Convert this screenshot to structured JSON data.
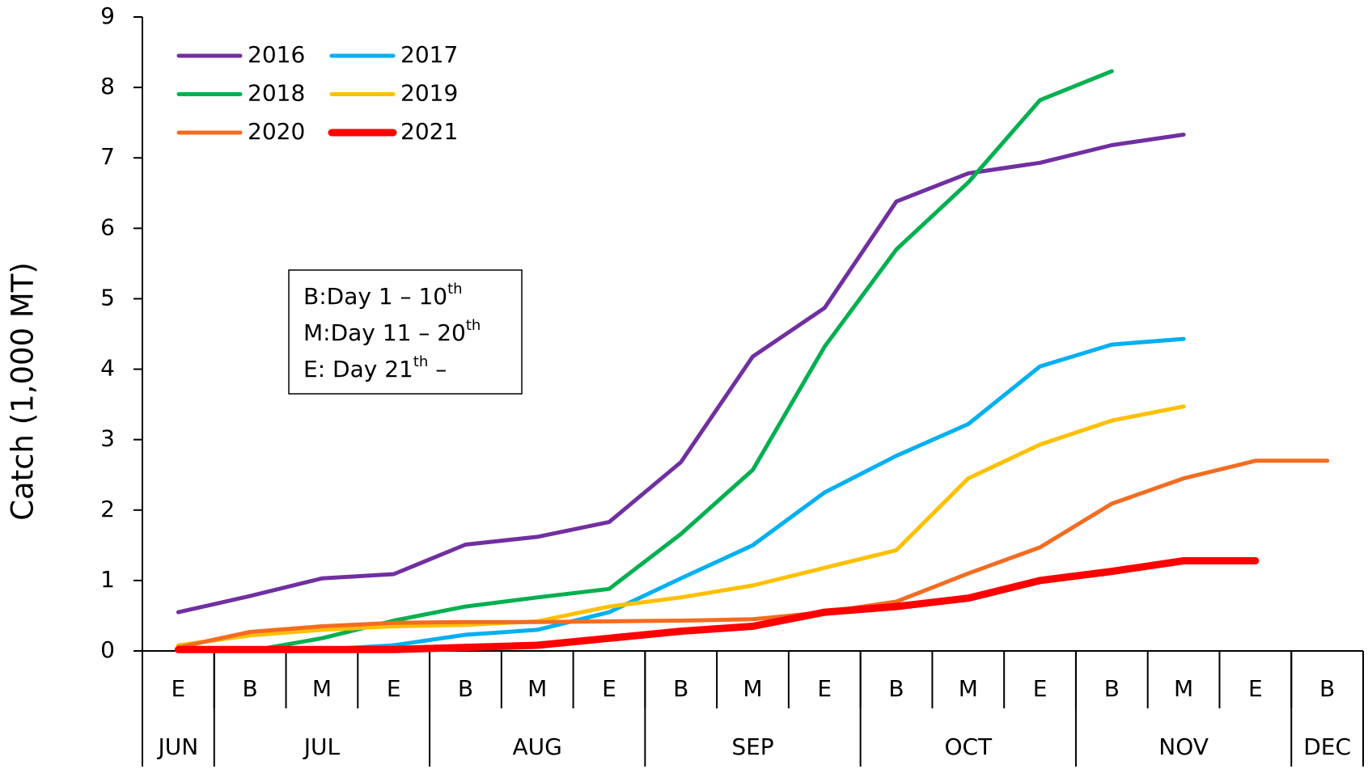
{
  "chart_data": {
    "type": "line",
    "y_label": "Catch (1,000 MT)",
    "categories": [
      "E",
      "B",
      "M",
      "E",
      "B",
      "M",
      "E",
      "B",
      "M",
      "E",
      "B",
      "M",
      "E",
      "B",
      "M",
      "E",
      "B"
    ],
    "months": [
      {
        "label": "JUN",
        "span": 1
      },
      {
        "label": "JUL",
        "span": 3
      },
      {
        "label": "AUG",
        "span": 3
      },
      {
        "label": "SEP",
        "span": 3
      },
      {
        "label": "OCT",
        "span": 3
      },
      {
        "label": "NOV",
        "span": 3
      },
      {
        "label": "DEC",
        "span": 1
      }
    ],
    "ylim": [
      0,
      9
    ],
    "yticks": [
      0,
      1,
      2,
      3,
      4,
      5,
      6,
      7,
      8,
      9
    ],
    "legend": "upper left",
    "annotation": [
      {
        "text": "B:Day 1 – 10",
        "sup": "th"
      },
      {
        "text": "M:Day 11 – 20",
        "sup": "th"
      },
      {
        "text": "E: Day 21",
        "sup": "th",
        "after": " –"
      }
    ],
    "series": [
      {
        "name": "2016",
        "color": "#7030a0",
        "width": 5,
        "values": [
          0.55,
          0.78,
          1.03,
          1.09,
          1.51,
          1.62,
          1.83,
          2.68,
          4.18,
          4.87,
          6.38,
          6.78,
          6.93,
          7.18,
          7.33,
          null,
          null
        ]
      },
      {
        "name": "2017",
        "color": "#00b0f0",
        "width": 5,
        "values": [
          0.02,
          0.0,
          0.02,
          0.08,
          0.23,
          0.3,
          0.55,
          1.03,
          1.5,
          2.25,
          2.77,
          3.22,
          4.04,
          4.35,
          4.43,
          null,
          null
        ]
      },
      {
        "name": "2018",
        "color": "#00b050",
        "width": 5,
        "values": [
          0.0,
          0.0,
          0.18,
          0.43,
          0.63,
          0.76,
          0.88,
          1.66,
          2.57,
          4.32,
          5.7,
          6.65,
          7.82,
          8.23,
          null,
          null,
          null
        ]
      },
      {
        "name": "2019",
        "color": "#ffc000",
        "width": 5,
        "values": [
          0.08,
          0.22,
          0.3,
          0.35,
          0.37,
          0.42,
          0.63,
          0.76,
          0.93,
          1.18,
          1.43,
          2.45,
          2.93,
          3.27,
          3.47,
          null,
          null
        ]
      },
      {
        "name": "2020",
        "color": "#f36c21",
        "width": 5,
        "values": [
          0.05,
          0.27,
          0.35,
          0.4,
          0.41,
          0.41,
          0.42,
          0.43,
          0.45,
          0.55,
          0.7,
          1.1,
          1.47,
          2.09,
          2.45,
          2.7,
          2.7
        ]
      },
      {
        "name": "2021",
        "color": "#ff0000",
        "width": 9,
        "values": [
          0.02,
          0.02,
          0.02,
          0.02,
          0.05,
          0.08,
          0.18,
          0.28,
          0.35,
          0.55,
          0.63,
          0.75,
          1.0,
          1.13,
          1.28,
          1.28,
          null
        ]
      }
    ]
  }
}
